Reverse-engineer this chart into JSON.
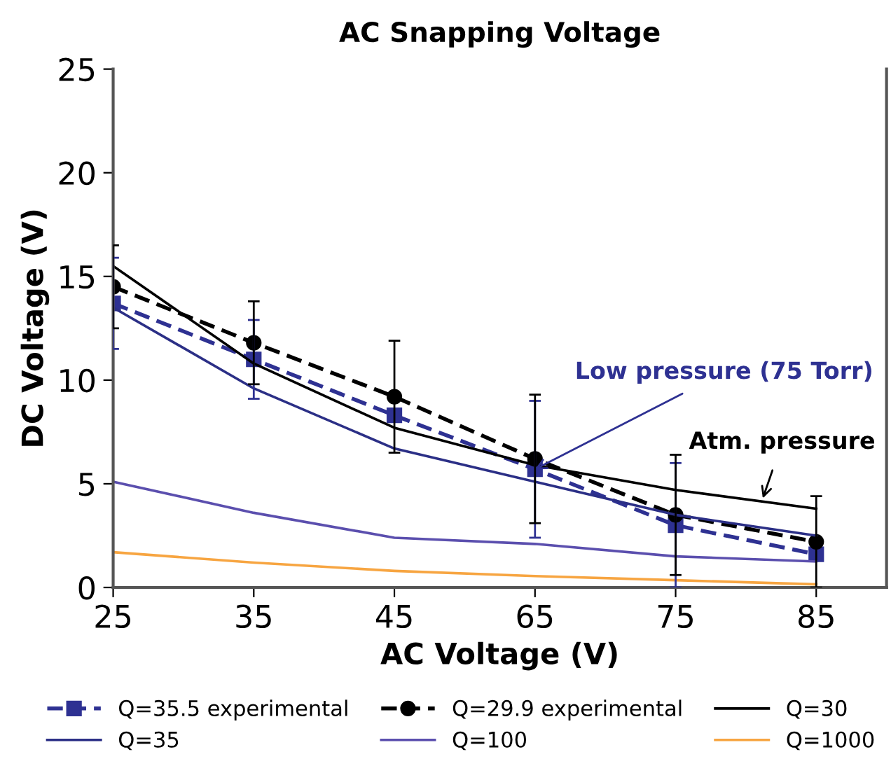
{
  "chart_data": {
    "type": "line",
    "title": "AC Snapping Voltage",
    "xlabel": "AC Voltage (V)",
    "ylabel": "DC Voltage (V)",
    "categories": [
      "25",
      "35",
      "45",
      "65",
      "75",
      "85"
    ],
    "ylim": [
      0,
      25
    ],
    "yticks": [
      0,
      5,
      10,
      15,
      20,
      25
    ],
    "legend": "bottom",
    "series": [
      {
        "name": "Q=35.5 experimental",
        "color": "#2e3192",
        "values": [
          13.7,
          11.0,
          8.3,
          5.7,
          3.0,
          1.6
        ],
        "errors": [
          2.2,
          1.9,
          null,
          3.3,
          [
            3.0,
            3.0
          ],
          null
        ],
        "marker": "square",
        "line_style": "dashed"
      },
      {
        "name": "Q=29.9 experimental",
        "color": "#000000",
        "values": [
          14.5,
          11.8,
          9.2,
          6.2,
          3.5,
          2.2
        ],
        "errors": [
          2,
          2,
          2.7,
          3.1,
          2.9,
          2.2
        ],
        "marker": "circle",
        "line_style": "dashed"
      },
      {
        "name": "Q=30",
        "color": "#000000",
        "values": [
          15.5,
          10.8,
          7.7,
          5.9,
          4.7,
          3.8
        ],
        "marker": "none",
        "line_style": "solid"
      },
      {
        "name": "Q=35",
        "color": "#2b2f86",
        "values": [
          13.5,
          9.6,
          6.7,
          5.1,
          3.5,
          2.5
        ],
        "marker": "none",
        "line_style": "solid"
      },
      {
        "name": "Q=100",
        "color": "#5b4fae",
        "values": [
          5.1,
          3.6,
          2.4,
          2.1,
          1.5,
          1.25
        ],
        "marker": "none",
        "line_style": "solid"
      },
      {
        "name": "Q=1000",
        "color": "#f7a541",
        "values": [
          1.7,
          1.2,
          0.8,
          0.55,
          0.35,
          0.15
        ],
        "marker": "none",
        "line_style": "solid"
      }
    ],
    "annotations": [
      {
        "text": "Low pressure (75 Torr)",
        "x": "65",
        "y": 5.7
      },
      {
        "text": "Atm. pressure",
        "y": 4.3
      }
    ]
  }
}
